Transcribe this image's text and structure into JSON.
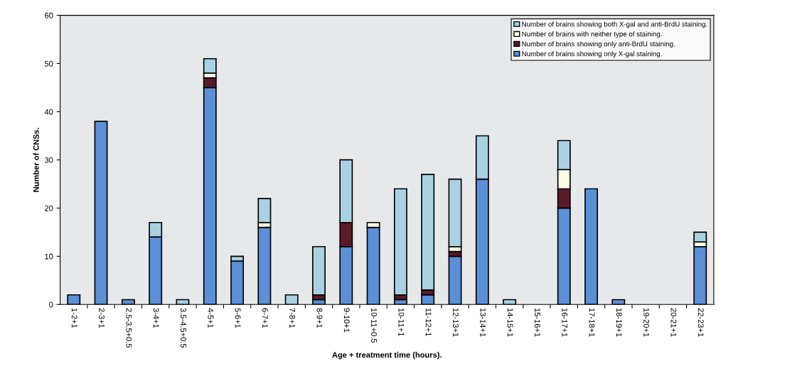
{
  "chart_data": {
    "type": "bar",
    "stacked": true,
    "xlabel": "Age + treatment time (hours).",
    "ylabel": "Number of CNSs.",
    "categories": [
      "1-2+1",
      "2-3+1",
      "2.5-3.5+0.5",
      "3-4+1",
      "3.5-4.5+0.5",
      "4-5+1",
      "5-6+1",
      "6-7+1",
      "7-8+1",
      "8-9+1",
      "9-10+1",
      "10-11+0.5",
      "10-11+1",
      "11-12+1",
      "12-13+1",
      "13-14+1",
      "14-15+1",
      "15-16+1",
      "16-17+1",
      "17-18+1",
      "18-19+1",
      "19-20+1",
      "20-21+1",
      "22-23+1"
    ],
    "series": [
      {
        "name": "Number of brains showing only X-gal staining.",
        "color": "#5b8fd6",
        "values": [
          2,
          38,
          1,
          14,
          0,
          45,
          9,
          16,
          0,
          1,
          12,
          16,
          1,
          2,
          10,
          26,
          0,
          0,
          20,
          24,
          1,
          0,
          0,
          12
        ]
      },
      {
        "name": "Number of brains showing only anti-BrdU staining.",
        "color": "#5a1a2a",
        "values": [
          0,
          0,
          0,
          0,
          0,
          2,
          0,
          0,
          0,
          1,
          5,
          0,
          1,
          1,
          1,
          0,
          0,
          0,
          4,
          0,
          0,
          0,
          0,
          0
        ]
      },
      {
        "name": "Number of brains with neither type of staining.",
        "color": "#fbfbe4",
        "values": [
          0,
          0,
          0,
          0,
          0,
          1,
          0,
          1,
          0,
          0,
          0,
          1,
          0,
          0,
          1,
          0,
          0,
          0,
          4,
          0,
          0,
          0,
          0,
          1
        ]
      },
      {
        "name": "Number of brains showing both X-gal and anti-BrdU staining.",
        "color": "#a9d1e3",
        "values": [
          0,
          0,
          0,
          3,
          1,
          3,
          1,
          5,
          2,
          10,
          13,
          0,
          22,
          24,
          14,
          9,
          1,
          0,
          6,
          0,
          0,
          0,
          0,
          2
        ]
      }
    ],
    "ylim": [
      0,
      60
    ],
    "yticks": [
      0,
      10,
      20,
      30,
      40,
      50,
      60
    ],
    "grid": false,
    "legend": "top right"
  }
}
